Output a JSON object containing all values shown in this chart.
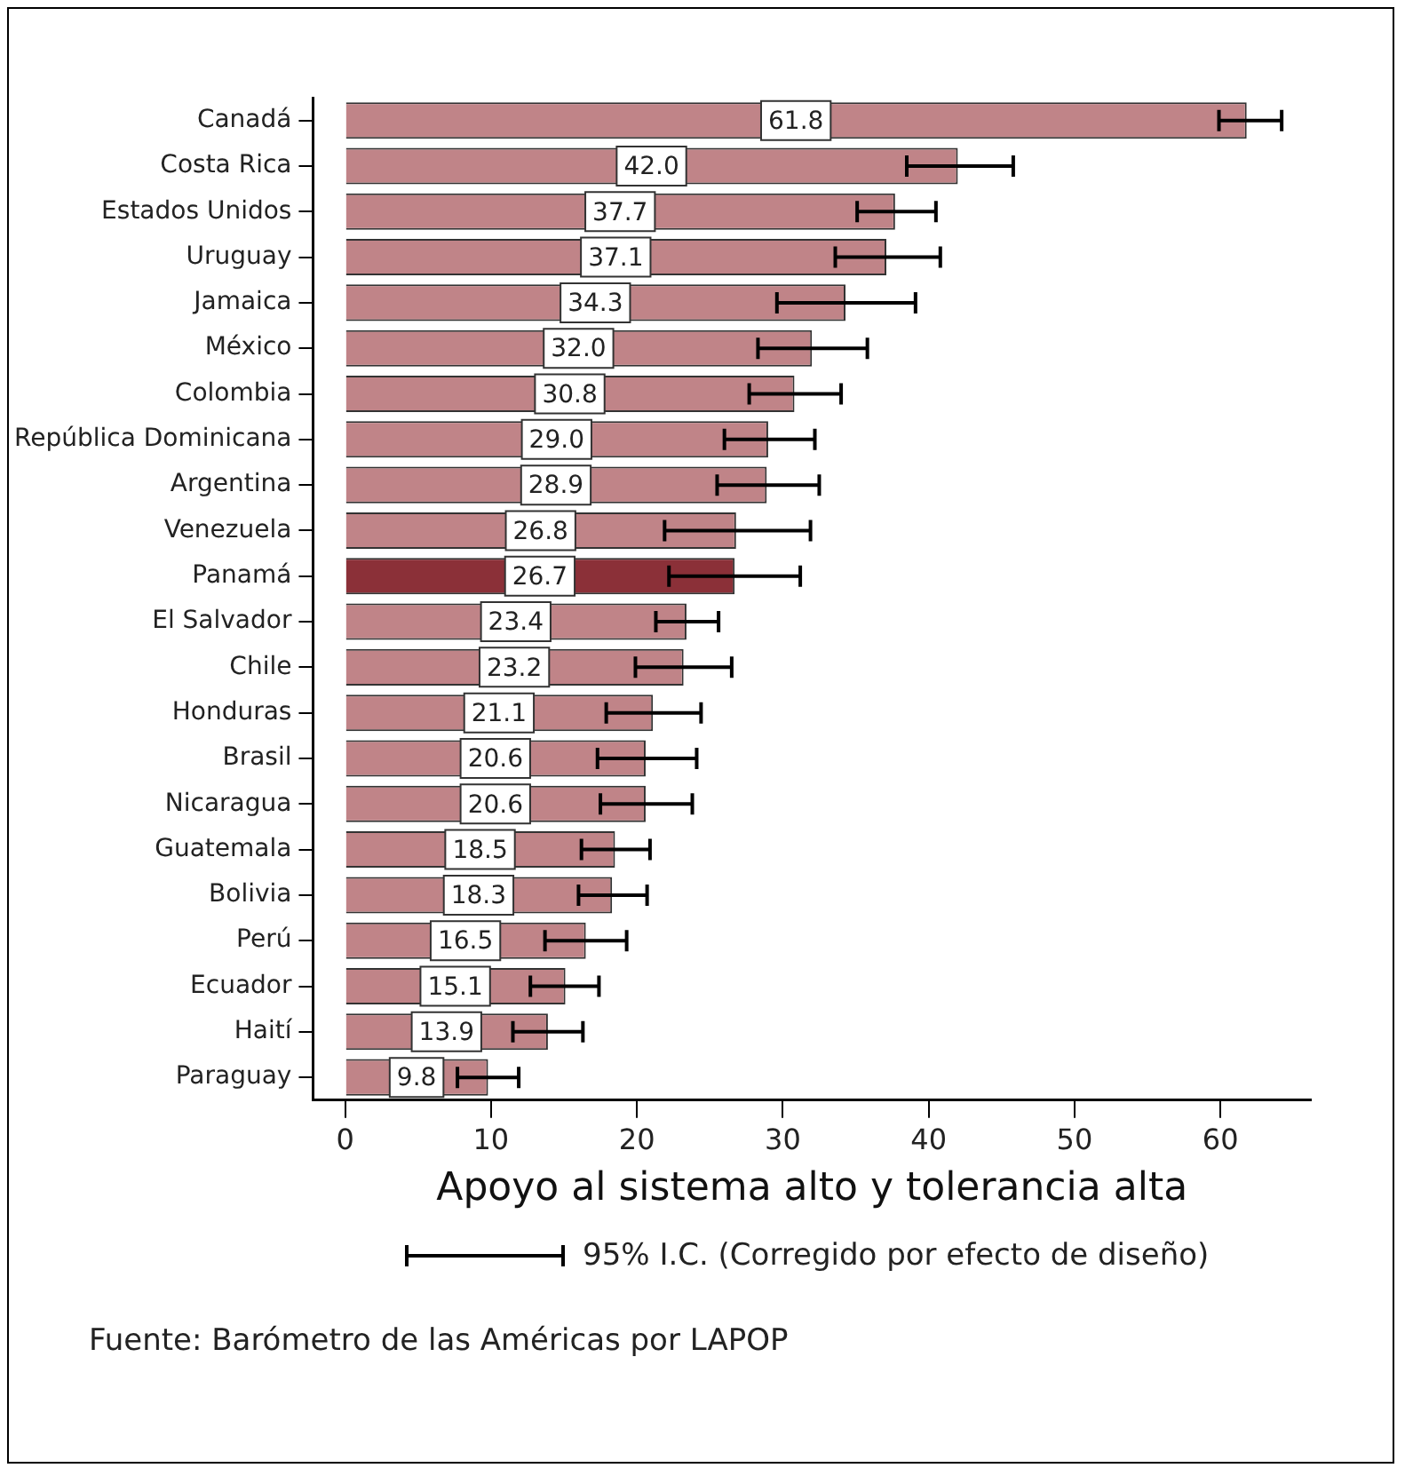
{
  "chart_data": {
    "type": "bar",
    "orientation": "horizontal",
    "xlabel": "Apoyo al sistema alto y tolerancia alta",
    "categories": [
      "Canadá",
      "Costa Rica",
      "Estados Unidos",
      "Uruguay",
      "Jamaica",
      "México",
      "Colombia",
      "República Dominicana",
      "Argentina",
      "Venezuela",
      "Panamá",
      "El Salvador",
      "Chile",
      "Honduras",
      "Brasil",
      "Nicaragua",
      "Guatemala",
      "Bolivia",
      "Perú",
      "Ecuador",
      "Haití",
      "Paraguay"
    ],
    "values": [
      61.8,
      42.0,
      37.7,
      37.1,
      34.3,
      32.0,
      30.8,
      29.0,
      28.9,
      26.8,
      26.7,
      23.4,
      23.2,
      21.1,
      20.6,
      20.6,
      18.5,
      18.3,
      16.5,
      15.1,
      13.9,
      9.8
    ],
    "value_labels": [
      "61.8",
      "42.0",
      "37.7",
      "37.1",
      "34.3",
      "32.0",
      "30.8",
      "29.0",
      "28.9",
      "26.8",
      "26.7",
      "23.4",
      "23.2",
      "21.1",
      "20.6",
      "20.6",
      "18.5",
      "18.3",
      "16.5",
      "15.1",
      "13.9",
      "9.8"
    ],
    "errors": [
      [
        59.9,
        64.2
      ],
      [
        38.5,
        45.8
      ],
      [
        35.1,
        40.5
      ],
      [
        33.6,
        40.8
      ],
      [
        29.6,
        39.1
      ],
      [
        28.3,
        35.8
      ],
      [
        27.7,
        34.0
      ],
      [
        26.0,
        32.2
      ],
      [
        25.5,
        32.5
      ],
      [
        21.9,
        31.9
      ],
      [
        22.2,
        31.2
      ],
      [
        21.3,
        25.6
      ],
      [
        19.9,
        26.5
      ],
      [
        17.9,
        24.4
      ],
      [
        17.3,
        24.1
      ],
      [
        17.5,
        23.8
      ],
      [
        16.2,
        20.9
      ],
      [
        16.0,
        20.7
      ],
      [
        13.7,
        19.3
      ],
      [
        12.7,
        17.4
      ],
      [
        11.5,
        16.3
      ],
      [
        7.7,
        11.9
      ]
    ],
    "colors": [
      "#c08488",
      "#c08488",
      "#c08488",
      "#c08488",
      "#c08488",
      "#c08488",
      "#c08488",
      "#c08488",
      "#c08488",
      "#c08488",
      "#8b3038",
      "#c08488",
      "#c08488",
      "#c08488",
      "#c08488",
      "#c08488",
      "#c08488",
      "#c08488",
      "#c08488",
      "#c08488",
      "#c08488",
      "#c08488"
    ],
    "xlim": [
      -2.2,
      66.2
    ],
    "xticks": [
      0,
      10,
      20,
      30,
      40,
      50,
      60
    ],
    "grid": false,
    "legend": false,
    "annotations": [
      "95% I.C. (Corregido por efecto de diseño)",
      "Fuente: Barómetro de las Américas por LAPOP"
    ]
  }
}
